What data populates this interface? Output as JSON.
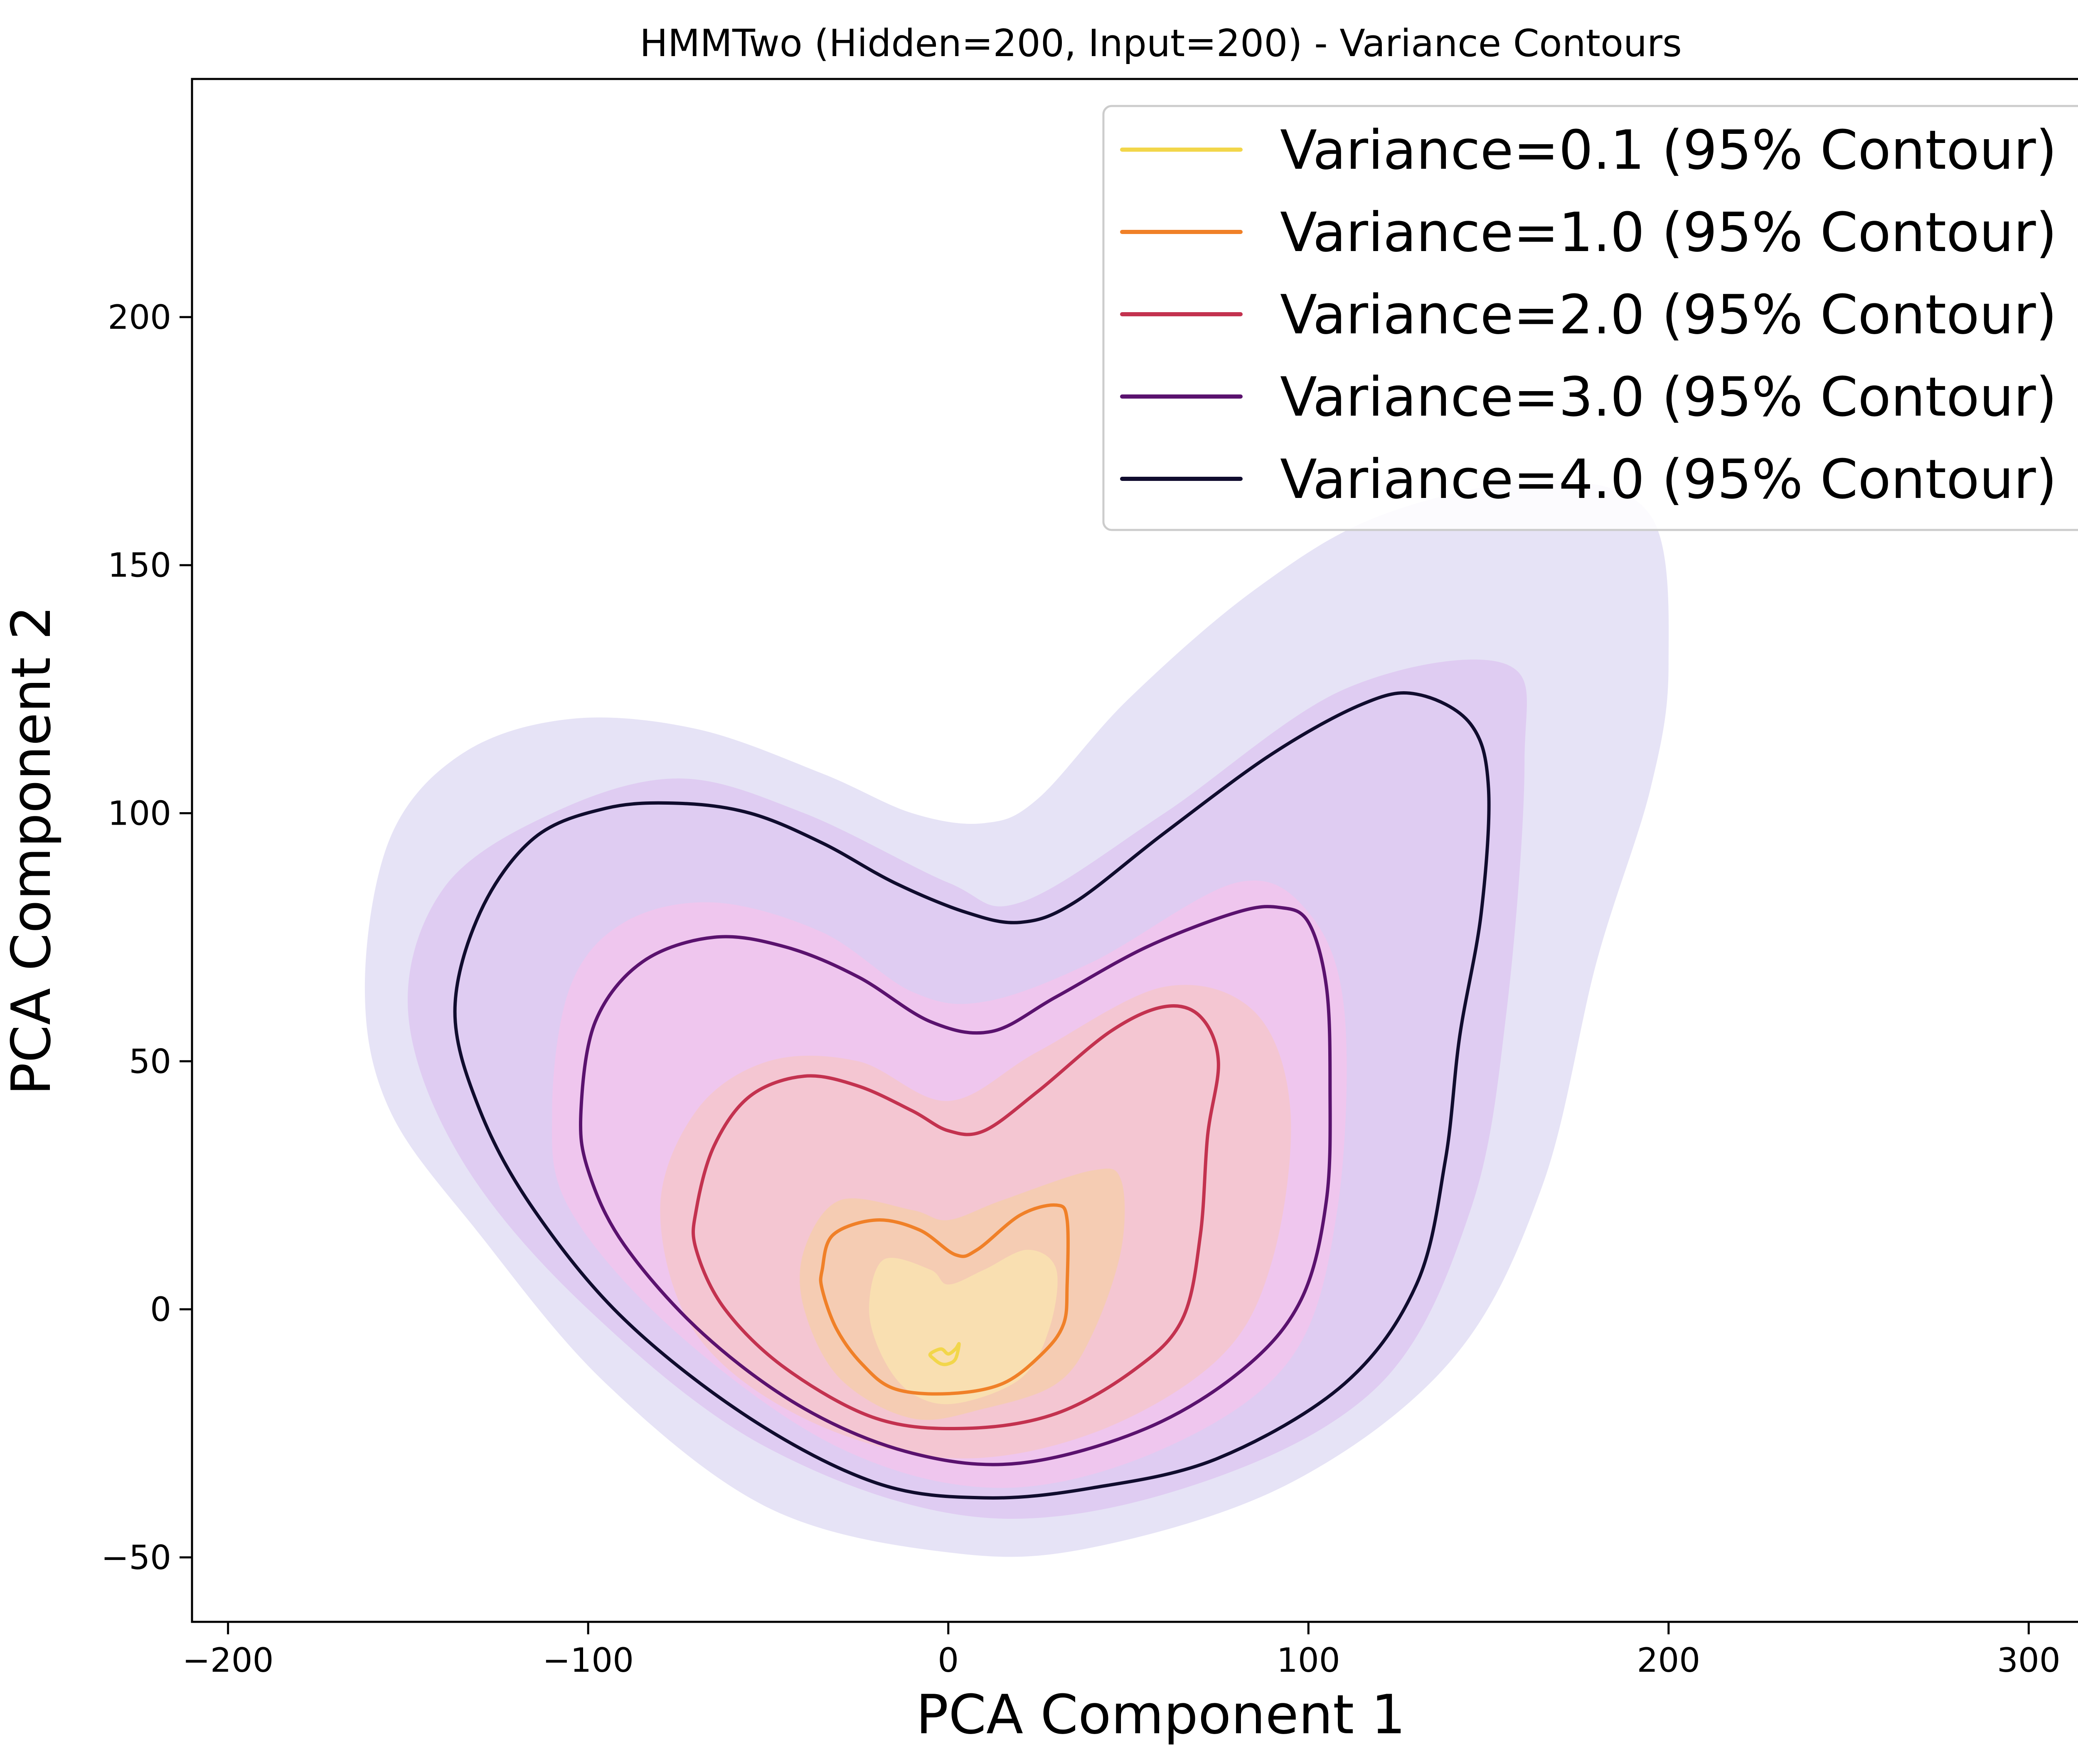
{
  "chart_data": {
    "type": "contour",
    "title": "HMMTwo (Hidden=200, Input=200) - Variance Contours",
    "xlabel": "PCA Component 1",
    "ylabel": "PCA Component 2",
    "xlim": [
      -210,
      328
    ],
    "ylim": [
      -63,
      248
    ],
    "x_ticks": [
      -200,
      -100,
      0,
      100,
      200,
      300
    ],
    "y_ticks": [
      -50,
      0,
      50,
      100,
      150,
      200
    ],
    "x_tick_labels": [
      "−200",
      "−100",
      "0",
      "100",
      "200",
      "300"
    ],
    "y_tick_labels": [
      "−50",
      "0",
      "50",
      "100",
      "150",
      "200"
    ],
    "legend_position": "top-right",
    "grid": false,
    "series": [
      {
        "name": "Variance=0.1 (95% Contour)",
        "color": "#f2d64a",
        "fill_color": "#f9e6b0",
        "contour": [
          [
            -5,
            -9
          ],
          [
            -2,
            -8
          ],
          [
            0,
            -9
          ],
          [
            2,
            -8
          ],
          [
            3,
            -7
          ],
          [
            2,
            -10
          ],
          [
            0,
            -11
          ],
          [
            -2,
            -11
          ],
          [
            -4,
            -10
          ],
          [
            -5,
            -9
          ]
        ],
        "filled_region": [
          [
            -18,
            -10
          ],
          [
            -22,
            0
          ],
          [
            -18,
            10
          ],
          [
            -5,
            8
          ],
          [
            0,
            5
          ],
          [
            10,
            8
          ],
          [
            22,
            12
          ],
          [
            30,
            8
          ],
          [
            28,
            -4
          ],
          [
            20,
            -14
          ],
          [
            2,
            -19
          ],
          [
            -10,
            -17
          ],
          [
            -18,
            -10
          ]
        ]
      },
      {
        "name": "Variance=1.0 (95% Contour)",
        "color": "#f08028",
        "fill_color": "#f5cda8",
        "contour": [
          [
            -35,
            8
          ],
          [
            -32,
            15
          ],
          [
            -20,
            18
          ],
          [
            -8,
            16
          ],
          [
            2,
            11
          ],
          [
            8,
            12
          ],
          [
            20,
            19
          ],
          [
            30,
            21
          ],
          [
            33,
            18
          ],
          [
            33,
            5
          ],
          [
            32,
            -3
          ],
          [
            26,
            -9
          ],
          [
            15,
            -15
          ],
          [
            0,
            -17
          ],
          [
            -15,
            -16
          ],
          [
            -24,
            -11
          ],
          [
            -31,
            -4
          ],
          [
            -35,
            4
          ],
          [
            -35,
            8
          ]
        ],
        "filled_region": [
          [
            -40,
            0
          ],
          [
            -40,
            12
          ],
          [
            -30,
            22
          ],
          [
            -10,
            20
          ],
          [
            0,
            18
          ],
          [
            15,
            22
          ],
          [
            40,
            28
          ],
          [
            48,
            26
          ],
          [
            48,
            12
          ],
          [
            40,
            -5
          ],
          [
            30,
            -15
          ],
          [
            10,
            -20
          ],
          [
            -10,
            -22
          ],
          [
            -30,
            -14
          ],
          [
            -40,
            0
          ]
        ]
      },
      {
        "name": "Variance=2.0 (95% Contour)",
        "color": "#c3324f",
        "fill_color": "#f6c6c8",
        "contour": [
          [
            -70,
            20
          ],
          [
            -65,
            33
          ],
          [
            -55,
            43
          ],
          [
            -40,
            47
          ],
          [
            -25,
            45
          ],
          [
            -10,
            40
          ],
          [
            0,
            36
          ],
          [
            10,
            36
          ],
          [
            25,
            44
          ],
          [
            45,
            56
          ],
          [
            60,
            61
          ],
          [
            70,
            59
          ],
          [
            75,
            50
          ],
          [
            72,
            35
          ],
          [
            70,
            15
          ],
          [
            65,
            -2
          ],
          [
            52,
            -12
          ],
          [
            30,
            -21
          ],
          [
            5,
            -24
          ],
          [
            -20,
            -22
          ],
          [
            -45,
            -12
          ],
          [
            -62,
            0
          ],
          [
            -70,
            12
          ],
          [
            -70,
            20
          ]
        ],
        "filled_region": [
          [
            -80,
            20
          ],
          [
            -70,
            40
          ],
          [
            -50,
            50
          ],
          [
            -25,
            50
          ],
          [
            0,
            42
          ],
          [
            25,
            52
          ],
          [
            60,
            65
          ],
          [
            85,
            60
          ],
          [
            95,
            40
          ],
          [
            90,
            10
          ],
          [
            75,
            -10
          ],
          [
            40,
            -25
          ],
          [
            0,
            -30
          ],
          [
            -40,
            -22
          ],
          [
            -70,
            -5
          ],
          [
            -80,
            20
          ]
        ]
      },
      {
        "name": "Variance=3.0 (95% Contour)",
        "color": "#5a126e",
        "fill_color": "#f4c4ec",
        "contour": [
          [
            -102,
            40
          ],
          [
            -98,
            58
          ],
          [
            -85,
            70
          ],
          [
            -65,
            75
          ],
          [
            -45,
            73
          ],
          [
            -25,
            67
          ],
          [
            -5,
            58
          ],
          [
            12,
            56
          ],
          [
            30,
            63
          ],
          [
            55,
            73
          ],
          [
            80,
            80
          ],
          [
            92,
            81
          ],
          [
            100,
            78
          ],
          [
            105,
            65
          ],
          [
            106,
            45
          ],
          [
            105,
            22
          ],
          [
            98,
            2
          ],
          [
            82,
            -12
          ],
          [
            55,
            -24
          ],
          [
            20,
            -31
          ],
          [
            -10,
            -29
          ],
          [
            -40,
            -20
          ],
          [
            -68,
            -5
          ],
          [
            -90,
            13
          ],
          [
            -100,
            28
          ],
          [
            -102,
            40
          ]
        ],
        "filled_region": [
          [
            -110,
            40
          ],
          [
            -105,
            65
          ],
          [
            -90,
            78
          ],
          [
            -65,
            82
          ],
          [
            -35,
            76
          ],
          [
            -10,
            64
          ],
          [
            10,
            62
          ],
          [
            40,
            70
          ],
          [
            80,
            86
          ],
          [
            100,
            80
          ],
          [
            110,
            60
          ],
          [
            108,
            20
          ],
          [
            95,
            -10
          ],
          [
            60,
            -28
          ],
          [
            15,
            -36
          ],
          [
            -30,
            -28
          ],
          [
            -75,
            -5
          ],
          [
            -105,
            20
          ],
          [
            -110,
            40
          ]
        ]
      },
      {
        "name": "Variance=4.0 (95% Contour)",
        "color": "#100c2e",
        "fill_color": "#dcc4f0",
        "contour": [
          [
            -137,
            60
          ],
          [
            -130,
            80
          ],
          [
            -115,
            95
          ],
          [
            -95,
            101
          ],
          [
            -75,
            102
          ],
          [
            -55,
            100
          ],
          [
            -35,
            94
          ],
          [
            -15,
            86
          ],
          [
            5,
            80
          ],
          [
            20,
            78
          ],
          [
            35,
            82
          ],
          [
            60,
            96
          ],
          [
            90,
            112
          ],
          [
            115,
            122
          ],
          [
            130,
            124
          ],
          [
            145,
            118
          ],
          [
            150,
            105
          ],
          [
            148,
            80
          ],
          [
            142,
            55
          ],
          [
            138,
            30
          ],
          [
            130,
            5
          ],
          [
            110,
            -15
          ],
          [
            75,
            -30
          ],
          [
            40,
            -36
          ],
          [
            10,
            -38
          ],
          [
            -20,
            -35
          ],
          [
            -55,
            -22
          ],
          [
            -90,
            -2
          ],
          [
            -115,
            20
          ],
          [
            -130,
            40
          ],
          [
            -137,
            60
          ]
        ],
        "filled_region": [
          [
            -150,
            60
          ],
          [
            -140,
            85
          ],
          [
            -110,
            100
          ],
          [
            -75,
            107
          ],
          [
            -40,
            100
          ],
          [
            0,
            86
          ],
          [
            20,
            82
          ],
          [
            60,
            100
          ],
          [
            110,
            125
          ],
          [
            155,
            130
          ],
          [
            160,
            110
          ],
          [
            155,
            60
          ],
          [
            145,
            20
          ],
          [
            120,
            -15
          ],
          [
            70,
            -35
          ],
          [
            10,
            -42
          ],
          [
            -50,
            -28
          ],
          [
            -100,
            0
          ],
          [
            -135,
            30
          ],
          [
            -150,
            60
          ]
        ]
      },
      {
        "name": "",
        "color": "none",
        "fill_color": "#e6e3f6",
        "contour": [],
        "filled_region": [
          [
            -162,
            65
          ],
          [
            -155,
            95
          ],
          [
            -135,
            112
          ],
          [
            -105,
            119
          ],
          [
            -70,
            117
          ],
          [
            -35,
            108
          ],
          [
            -10,
            100
          ],
          [
            10,
            98
          ],
          [
            25,
            103
          ],
          [
            50,
            123
          ],
          [
            85,
            145
          ],
          [
            120,
            160
          ],
          [
            165,
            167
          ],
          [
            195,
            160
          ],
          [
            200,
            130
          ],
          [
            195,
            105
          ],
          [
            180,
            70
          ],
          [
            165,
            25
          ],
          [
            140,
            -10
          ],
          [
            95,
            -35
          ],
          [
            40,
            -48
          ],
          [
            0,
            -49
          ],
          [
            -50,
            -40
          ],
          [
            -95,
            -15
          ],
          [
            -130,
            15
          ],
          [
            -155,
            40
          ],
          [
            -162,
            65
          ]
        ]
      }
    ]
  }
}
